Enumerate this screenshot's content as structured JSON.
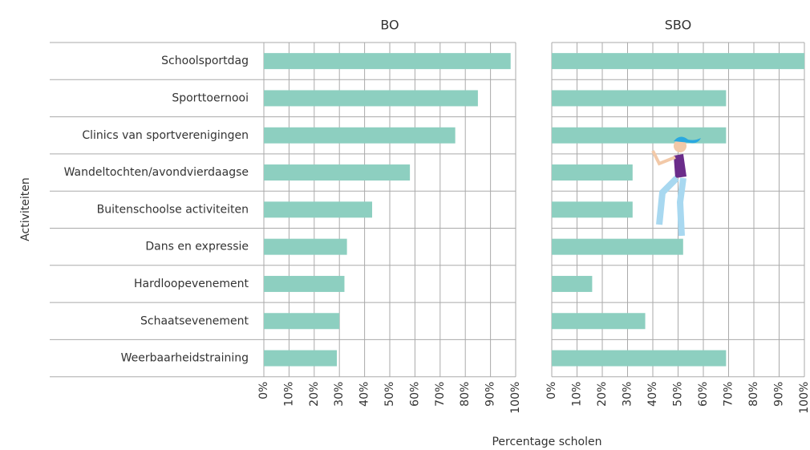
{
  "chart_data": {
    "type": "bar",
    "orientation": "horizontal",
    "xlabel": "Percentage scholen",
    "ylabel": "Activiteiten",
    "categories": [
      "Schoolsportdag",
      "Sporttoernooi",
      "Clinics van sportverenigingen",
      "Wandeltochten/avondvierdaagse",
      "Buitenschoolse activiteiten",
      "Dans en expressie",
      "Hardloopevenement",
      "Schaatsevenement",
      "Weerbaarheidstraining"
    ],
    "series": [
      {
        "name": "BO",
        "color": "#8dcfc0",
        "values": [
          98,
          85,
          76,
          58,
          43,
          33,
          32,
          30,
          29
        ]
      },
      {
        "name": "SBO",
        "color": "#8dcfc0",
        "values": [
          100,
          69,
          69,
          32,
          32,
          52,
          16,
          37,
          69
        ]
      }
    ],
    "xlim": [
      0,
      100
    ],
    "xticks": [
      {
        "value": 0,
        "label": "0%"
      },
      {
        "value": 10,
        "label": "10%"
      },
      {
        "value": 20,
        "label": "20%"
      },
      {
        "value": 30,
        "label": "30%"
      },
      {
        "value": 40,
        "label": "40%"
      },
      {
        "value": 50,
        "label": "50%"
      },
      {
        "value": 60,
        "label": "60%"
      },
      {
        "value": 70,
        "label": "70%"
      },
      {
        "value": 80,
        "label": "80%"
      },
      {
        "value": 90,
        "label": "90%"
      },
      {
        "value": 100,
        "label": "100%"
      }
    ],
    "grid": true
  }
}
